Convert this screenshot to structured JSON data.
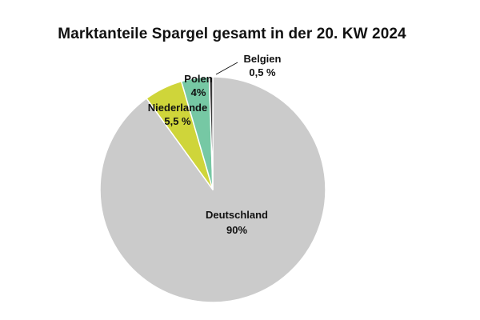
{
  "chart_data": {
    "type": "pie",
    "title": "Marktanteile Spargel gesamt in der 20. KW 2024",
    "slices": [
      {
        "label": "Deutschland",
        "value": 90,
        "value_label": "90%",
        "color": "#cbcbcb"
      },
      {
        "label": "Niederlande",
        "value": 5.5,
        "value_label": "5,5 %",
        "color": "#cfd53a"
      },
      {
        "label": "Polen",
        "value": 4,
        "value_label": "4%",
        "color": "#76c8a4"
      },
      {
        "label": "Belgien",
        "value": 0.5,
        "value_label": "0,5 %",
        "color": "#3a3a3a"
      }
    ]
  }
}
